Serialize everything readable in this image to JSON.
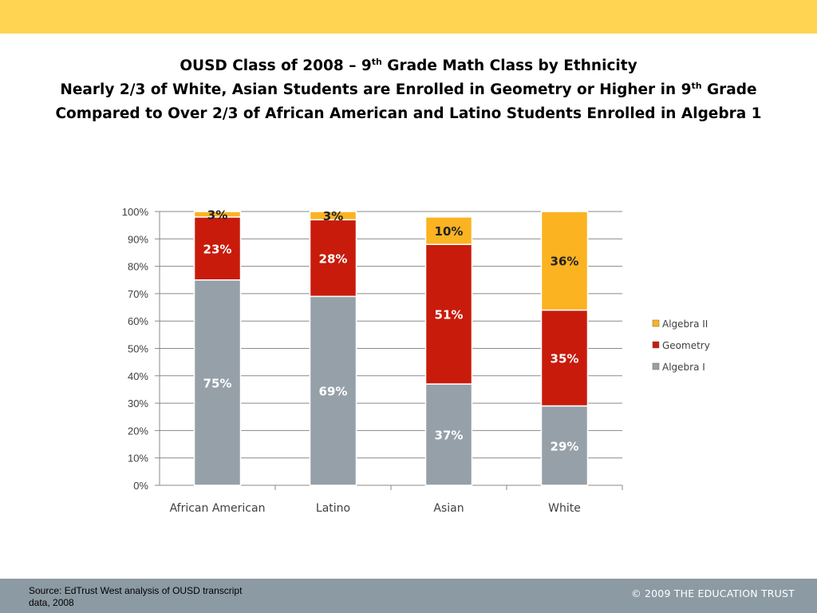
{
  "header": {
    "title_line1_pre": "OUSD Class of 2008 – 9",
    "title_line1_sup": "th",
    "title_line1_post": " Grade Math Class by Ethnicity",
    "title_line2_pre": "Nearly 2/3 of White, Asian Students are Enrolled in Geometry or Higher in 9",
    "title_line2_sup": "th",
    "title_line2_post": " Grade",
    "title_line3": "Compared to Over 2/3 of African American and Latino Students Enrolled in Algebra 1"
  },
  "chart_data": {
    "type": "bar",
    "stacked": true,
    "categories": [
      "African American",
      "Latino",
      "Asian",
      "White"
    ],
    "series": [
      {
        "name": "Algebra I",
        "values": [
          75,
          69,
          37,
          29
        ],
        "labels": [
          "75%",
          "69%",
          "37%",
          "29%"
        ],
        "color": "#96a0a8"
      },
      {
        "name": "Geometry",
        "values": [
          23,
          28,
          51,
          35
        ],
        "labels": [
          "23%",
          "28%",
          "51%",
          "35%"
        ],
        "color": "#c81b0b"
      },
      {
        "name": "Algebra II",
        "values": [
          3,
          3,
          10,
          36
        ],
        "labels": [
          "3%",
          "3%",
          "10%",
          "36%"
        ],
        "color": "#fbb321"
      }
    ],
    "ylim": [
      0,
      100
    ],
    "yticks": [
      "0%",
      "10%",
      "20%",
      "30%",
      "40%",
      "50%",
      "60%",
      "70%",
      "80%",
      "90%",
      "100%"
    ],
    "grid": true,
    "legend_position": "right",
    "legend_order": [
      "Algebra II",
      "Geometry",
      "Algebra I"
    ]
  },
  "footer": {
    "source_text": "Source:  EdTrust West analysis of OUSD transcript data, 2008",
    "copyright": "© 2009 THE EDUCATION TRUST",
    "bar_color": "#8c9aa3"
  }
}
